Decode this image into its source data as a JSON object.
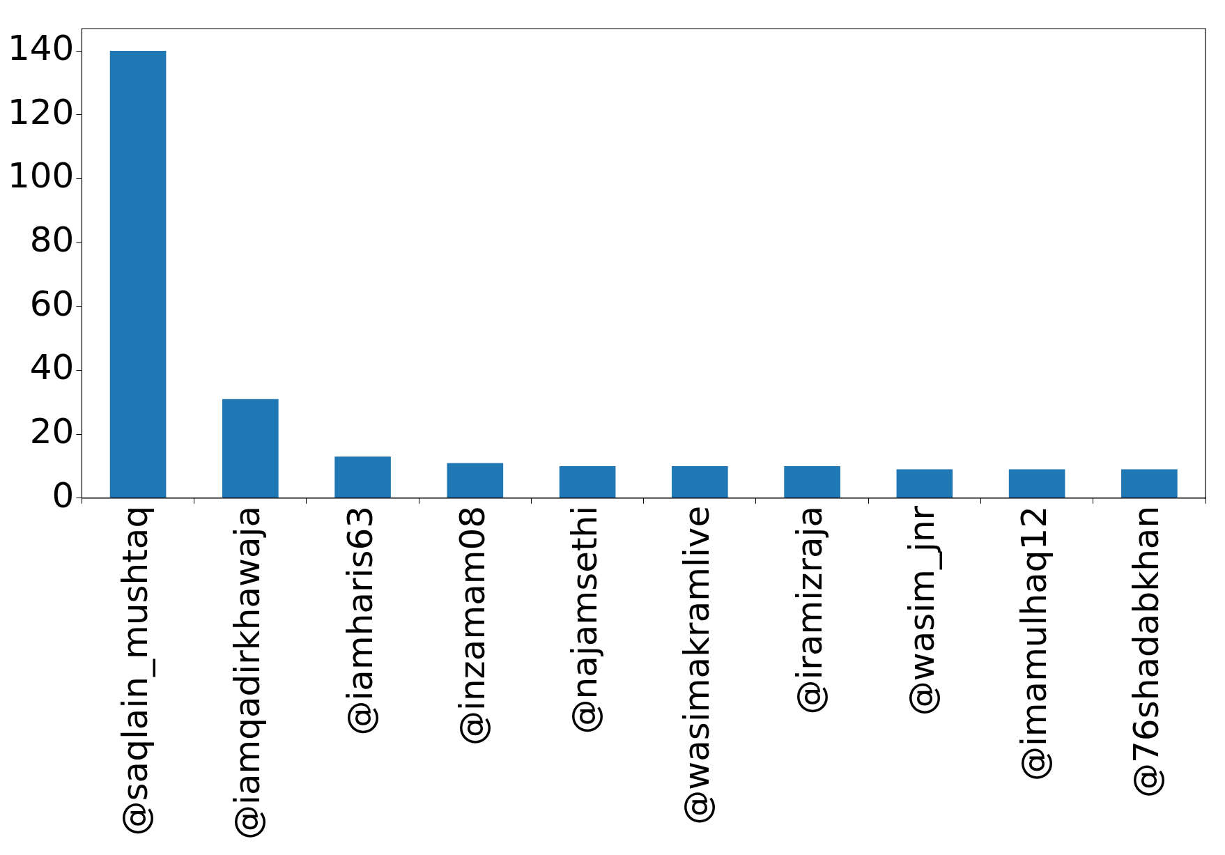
{
  "chart_data": {
    "type": "bar",
    "categories": [
      "@saqlain_mushtaq",
      "@iamqadirkhawaja",
      "@iamharis63",
      "@inzamam08",
      "@najamsethi",
      "@wasimakramlive",
      "@iramizraja",
      "@wasim_jnr",
      "@imamulhaq12",
      "@76shadabkhan"
    ],
    "values": [
      140,
      31,
      13,
      11,
      10,
      10,
      10,
      9,
      9,
      9
    ],
    "color": "#1f77b4",
    "ylim": [
      0,
      147
    ],
    "yticks": [
      0,
      20,
      40,
      60,
      80,
      100,
      120,
      140
    ],
    "grid": false,
    "legend": false
  }
}
